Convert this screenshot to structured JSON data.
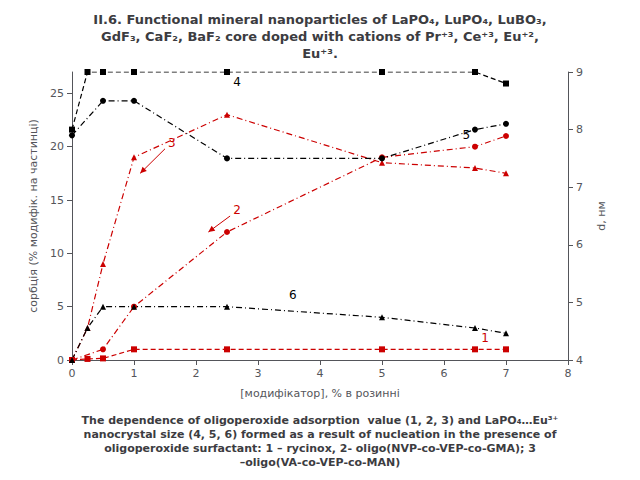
{
  "chart_data": {
    "type": "line",
    "title": "II.6. Functional mineral nanoparticles of LaPO₄, LuPO₄, LuBO₃,\nGdF₃, CaF₂, BaF₂ core doped with cations of Pr⁺³, Ce⁺³, Eu⁺²,\nEu⁺³.",
    "subtitle": "The dependence of oligoperoxide adsorption  value (1, 2, 3) and LaPO₄…Eu³⁺\nnanocrystal size (4, 5, 6) formed as a result of nucleation in the presence of\noligoperoxide surfactant: 1 – rycinox, 2- oligo(NVP-co-VEP-co-GMA); 3\n–oligo(VA-co-VEP-co-MAN)",
    "xlabel": "[модифікатор], % в розинні",
    "ylabel": "сорбція (% модифік. на частинці)",
    "y2label": "d, нм",
    "xlim": [
      0,
      8
    ],
    "xticks": [
      0,
      1,
      2,
      3,
      4,
      5,
      6,
      7,
      8
    ],
    "ylim": [
      0,
      27
    ],
    "yticks": [
      0,
      5,
      10,
      15,
      20,
      25
    ],
    "y2lim": [
      4,
      9
    ],
    "y2ticks": [
      4,
      5,
      6,
      7,
      8,
      9
    ],
    "grid": false,
    "series": [
      {
        "color": "#cc0000",
        "marker": "square",
        "line_style": "dashed",
        "x": [
          0,
          0.25,
          0.5,
          1,
          2.5,
          5,
          6.5,
          7
        ],
        "values": [
          0,
          0.1,
          0.15,
          1,
          1,
          1,
          1,
          1
        ]
      },
      {
        "color": "#cc0000",
        "marker": "circle",
        "line_style": "dashdot",
        "x": [
          0,
          0.5,
          1,
          2.5,
          5,
          6.5,
          7
        ],
        "values": [
          0,
          1,
          5,
          12,
          19,
          20,
          21
        ]
      },
      {
        "color": "#cc0000",
        "marker": "triangle",
        "line_style": "dashdot",
        "x": [
          0,
          0.25,
          0.5,
          1,
          2.5,
          5,
          6.5,
          7
        ],
        "values": [
          0,
          3,
          9,
          19,
          23,
          18.5,
          18,
          17.5
        ]
      },
      {
        "color": "#000000",
        "marker": "square",
        "line_style": "dashed",
        "axis": "y2",
        "x": [
          0,
          0.25,
          0.5,
          1,
          2.5,
          5,
          6.5,
          7
        ],
        "values": [
          8.0,
          9.0,
          9.0,
          9.0,
          9.0,
          9.0,
          9.0,
          8.8
        ]
      },
      {
        "color": "#000000",
        "marker": "circle",
        "line_style": "dashdot",
        "axis": "y2",
        "x": [
          0,
          0.5,
          1,
          2.5,
          5,
          6.5,
          7
        ],
        "values": [
          7.9,
          8.5,
          8.5,
          7.5,
          7.5,
          8.0,
          8.1
        ]
      },
      {
        "color": "#000000",
        "marker": "triangle",
        "line_style": "dashdot",
        "x": [
          0,
          0.25,
          0.5,
          1,
          2.5,
          5,
          6.5,
          7
        ],
        "values": [
          0,
          3.0,
          5.0,
          5.0,
          5.0,
          4.0,
          3.0,
          2.5
        ]
      }
    ],
    "annotations": [
      {
        "text": "4",
        "x": 2.6,
        "y": 25.5,
        "color": "#000000"
      },
      {
        "text": "2",
        "x": 2.6,
        "y": 13.5,
        "color": "#cc0000",
        "arrow_from": [
          2.55,
          13.5
        ],
        "arrow_to": [
          2.2,
          12.0
        ]
      },
      {
        "text": "3",
        "x": 1.55,
        "y": 19.8,
        "color": "#cc0000",
        "arrow_from": [
          1.5,
          19.8
        ],
        "arrow_to": [
          1.1,
          17.5
        ]
      },
      {
        "text": "1",
        "x": 6.6,
        "y": 1.5,
        "color": "#cc0000"
      },
      {
        "text": "5",
        "x": 6.3,
        "y": 20.5,
        "color": "#000000"
      },
      {
        "text": "6",
        "x": 3.5,
        "y": 5.5,
        "color": "#000000"
      }
    ]
  }
}
